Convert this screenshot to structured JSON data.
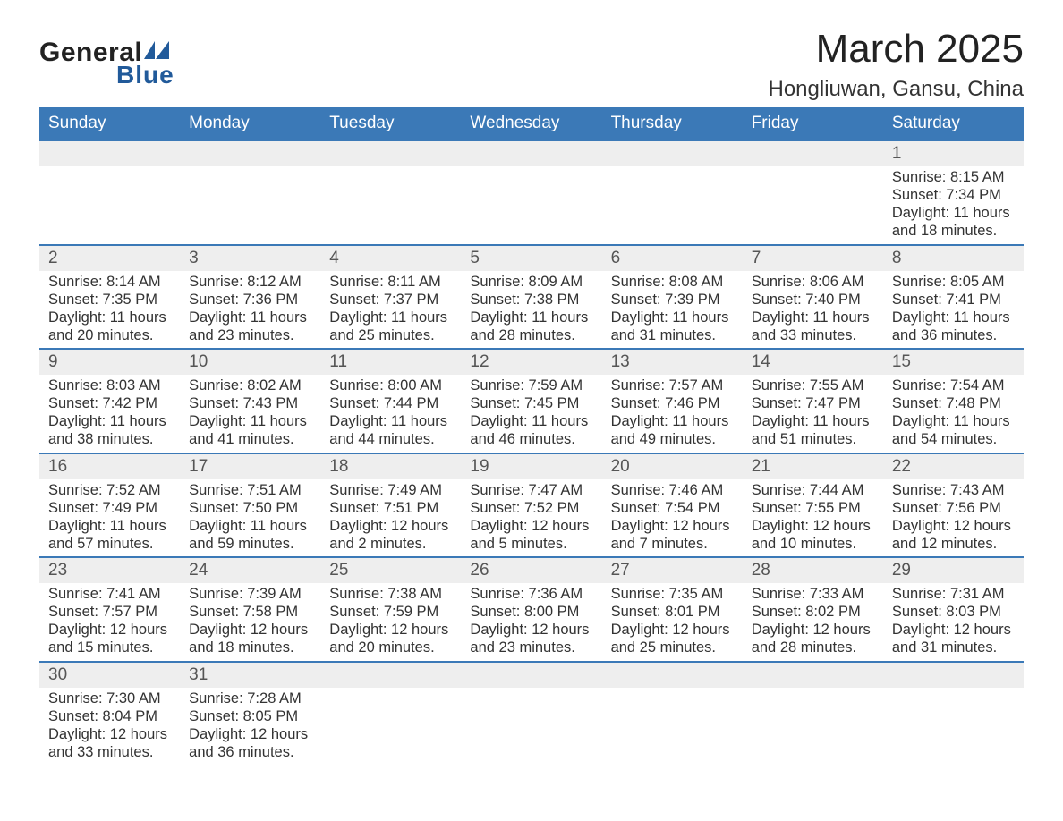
{
  "logo": {
    "text_general": "General",
    "text_blue": "Blue",
    "shape_color": "#215a9a"
  },
  "header": {
    "month_title": "March 2025",
    "location": "Hongliuwan, Gansu, China"
  },
  "colors": {
    "header_bg": "#3b79b7",
    "header_text": "#ffffff",
    "daynum_bg": "#eeeeee",
    "daynum_text": "#555555",
    "border_top": "#3b79b7",
    "body_text": "#333333",
    "background": "#ffffff"
  },
  "typography": {
    "month_title_fontsize": 44,
    "location_fontsize": 24,
    "weekday_fontsize": 19,
    "daynum_fontsize": 19,
    "details_fontsize": 16.5
  },
  "weekdays": [
    "Sunday",
    "Monday",
    "Tuesday",
    "Wednesday",
    "Thursday",
    "Friday",
    "Saturday"
  ],
  "labels": {
    "sunrise": "Sunrise:",
    "sunset": "Sunset:",
    "daylight": "Daylight:"
  },
  "weeks": [
    [
      null,
      null,
      null,
      null,
      null,
      null,
      {
        "day": "1",
        "sunrise": "8:15 AM",
        "sunset": "7:34 PM",
        "daylight_l1": "11 hours",
        "daylight_l2": "and 18 minutes."
      }
    ],
    [
      {
        "day": "2",
        "sunrise": "8:14 AM",
        "sunset": "7:35 PM",
        "daylight_l1": "11 hours",
        "daylight_l2": "and 20 minutes."
      },
      {
        "day": "3",
        "sunrise": "8:12 AM",
        "sunset": "7:36 PM",
        "daylight_l1": "11 hours",
        "daylight_l2": "and 23 minutes."
      },
      {
        "day": "4",
        "sunrise": "8:11 AM",
        "sunset": "7:37 PM",
        "daylight_l1": "11 hours",
        "daylight_l2": "and 25 minutes."
      },
      {
        "day": "5",
        "sunrise": "8:09 AM",
        "sunset": "7:38 PM",
        "daylight_l1": "11 hours",
        "daylight_l2": "and 28 minutes."
      },
      {
        "day": "6",
        "sunrise": "8:08 AM",
        "sunset": "7:39 PM",
        "daylight_l1": "11 hours",
        "daylight_l2": "and 31 minutes."
      },
      {
        "day": "7",
        "sunrise": "8:06 AM",
        "sunset": "7:40 PM",
        "daylight_l1": "11 hours",
        "daylight_l2": "and 33 minutes."
      },
      {
        "day": "8",
        "sunrise": "8:05 AM",
        "sunset": "7:41 PM",
        "daylight_l1": "11 hours",
        "daylight_l2": "and 36 minutes."
      }
    ],
    [
      {
        "day": "9",
        "sunrise": "8:03 AM",
        "sunset": "7:42 PM",
        "daylight_l1": "11 hours",
        "daylight_l2": "and 38 minutes."
      },
      {
        "day": "10",
        "sunrise": "8:02 AM",
        "sunset": "7:43 PM",
        "daylight_l1": "11 hours",
        "daylight_l2": "and 41 minutes."
      },
      {
        "day": "11",
        "sunrise": "8:00 AM",
        "sunset": "7:44 PM",
        "daylight_l1": "11 hours",
        "daylight_l2": "and 44 minutes."
      },
      {
        "day": "12",
        "sunrise": "7:59 AM",
        "sunset": "7:45 PM",
        "daylight_l1": "11 hours",
        "daylight_l2": "and 46 minutes."
      },
      {
        "day": "13",
        "sunrise": "7:57 AM",
        "sunset": "7:46 PM",
        "daylight_l1": "11 hours",
        "daylight_l2": "and 49 minutes."
      },
      {
        "day": "14",
        "sunrise": "7:55 AM",
        "sunset": "7:47 PM",
        "daylight_l1": "11 hours",
        "daylight_l2": "and 51 minutes."
      },
      {
        "day": "15",
        "sunrise": "7:54 AM",
        "sunset": "7:48 PM",
        "daylight_l1": "11 hours",
        "daylight_l2": "and 54 minutes."
      }
    ],
    [
      {
        "day": "16",
        "sunrise": "7:52 AM",
        "sunset": "7:49 PM",
        "daylight_l1": "11 hours",
        "daylight_l2": "and 57 minutes."
      },
      {
        "day": "17",
        "sunrise": "7:51 AM",
        "sunset": "7:50 PM",
        "daylight_l1": "11 hours",
        "daylight_l2": "and 59 minutes."
      },
      {
        "day": "18",
        "sunrise": "7:49 AM",
        "sunset": "7:51 PM",
        "daylight_l1": "12 hours",
        "daylight_l2": "and 2 minutes."
      },
      {
        "day": "19",
        "sunrise": "7:47 AM",
        "sunset": "7:52 PM",
        "daylight_l1": "12 hours",
        "daylight_l2": "and 5 minutes."
      },
      {
        "day": "20",
        "sunrise": "7:46 AM",
        "sunset": "7:54 PM",
        "daylight_l1": "12 hours",
        "daylight_l2": "and 7 minutes."
      },
      {
        "day": "21",
        "sunrise": "7:44 AM",
        "sunset": "7:55 PM",
        "daylight_l1": "12 hours",
        "daylight_l2": "and 10 minutes."
      },
      {
        "day": "22",
        "sunrise": "7:43 AM",
        "sunset": "7:56 PM",
        "daylight_l1": "12 hours",
        "daylight_l2": "and 12 minutes."
      }
    ],
    [
      {
        "day": "23",
        "sunrise": "7:41 AM",
        "sunset": "7:57 PM",
        "daylight_l1": "12 hours",
        "daylight_l2": "and 15 minutes."
      },
      {
        "day": "24",
        "sunrise": "7:39 AM",
        "sunset": "7:58 PM",
        "daylight_l1": "12 hours",
        "daylight_l2": "and 18 minutes."
      },
      {
        "day": "25",
        "sunrise": "7:38 AM",
        "sunset": "7:59 PM",
        "daylight_l1": "12 hours",
        "daylight_l2": "and 20 minutes."
      },
      {
        "day": "26",
        "sunrise": "7:36 AM",
        "sunset": "8:00 PM",
        "daylight_l1": "12 hours",
        "daylight_l2": "and 23 minutes."
      },
      {
        "day": "27",
        "sunrise": "7:35 AM",
        "sunset": "8:01 PM",
        "daylight_l1": "12 hours",
        "daylight_l2": "and 25 minutes."
      },
      {
        "day": "28",
        "sunrise": "7:33 AM",
        "sunset": "8:02 PM",
        "daylight_l1": "12 hours",
        "daylight_l2": "and 28 minutes."
      },
      {
        "day": "29",
        "sunrise": "7:31 AM",
        "sunset": "8:03 PM",
        "daylight_l1": "12 hours",
        "daylight_l2": "and 31 minutes."
      }
    ],
    [
      {
        "day": "30",
        "sunrise": "7:30 AM",
        "sunset": "8:04 PM",
        "daylight_l1": "12 hours",
        "daylight_l2": "and 33 minutes."
      },
      {
        "day": "31",
        "sunrise": "7:28 AM",
        "sunset": "8:05 PM",
        "daylight_l1": "12 hours",
        "daylight_l2": "and 36 minutes."
      },
      null,
      null,
      null,
      null,
      null
    ]
  ]
}
